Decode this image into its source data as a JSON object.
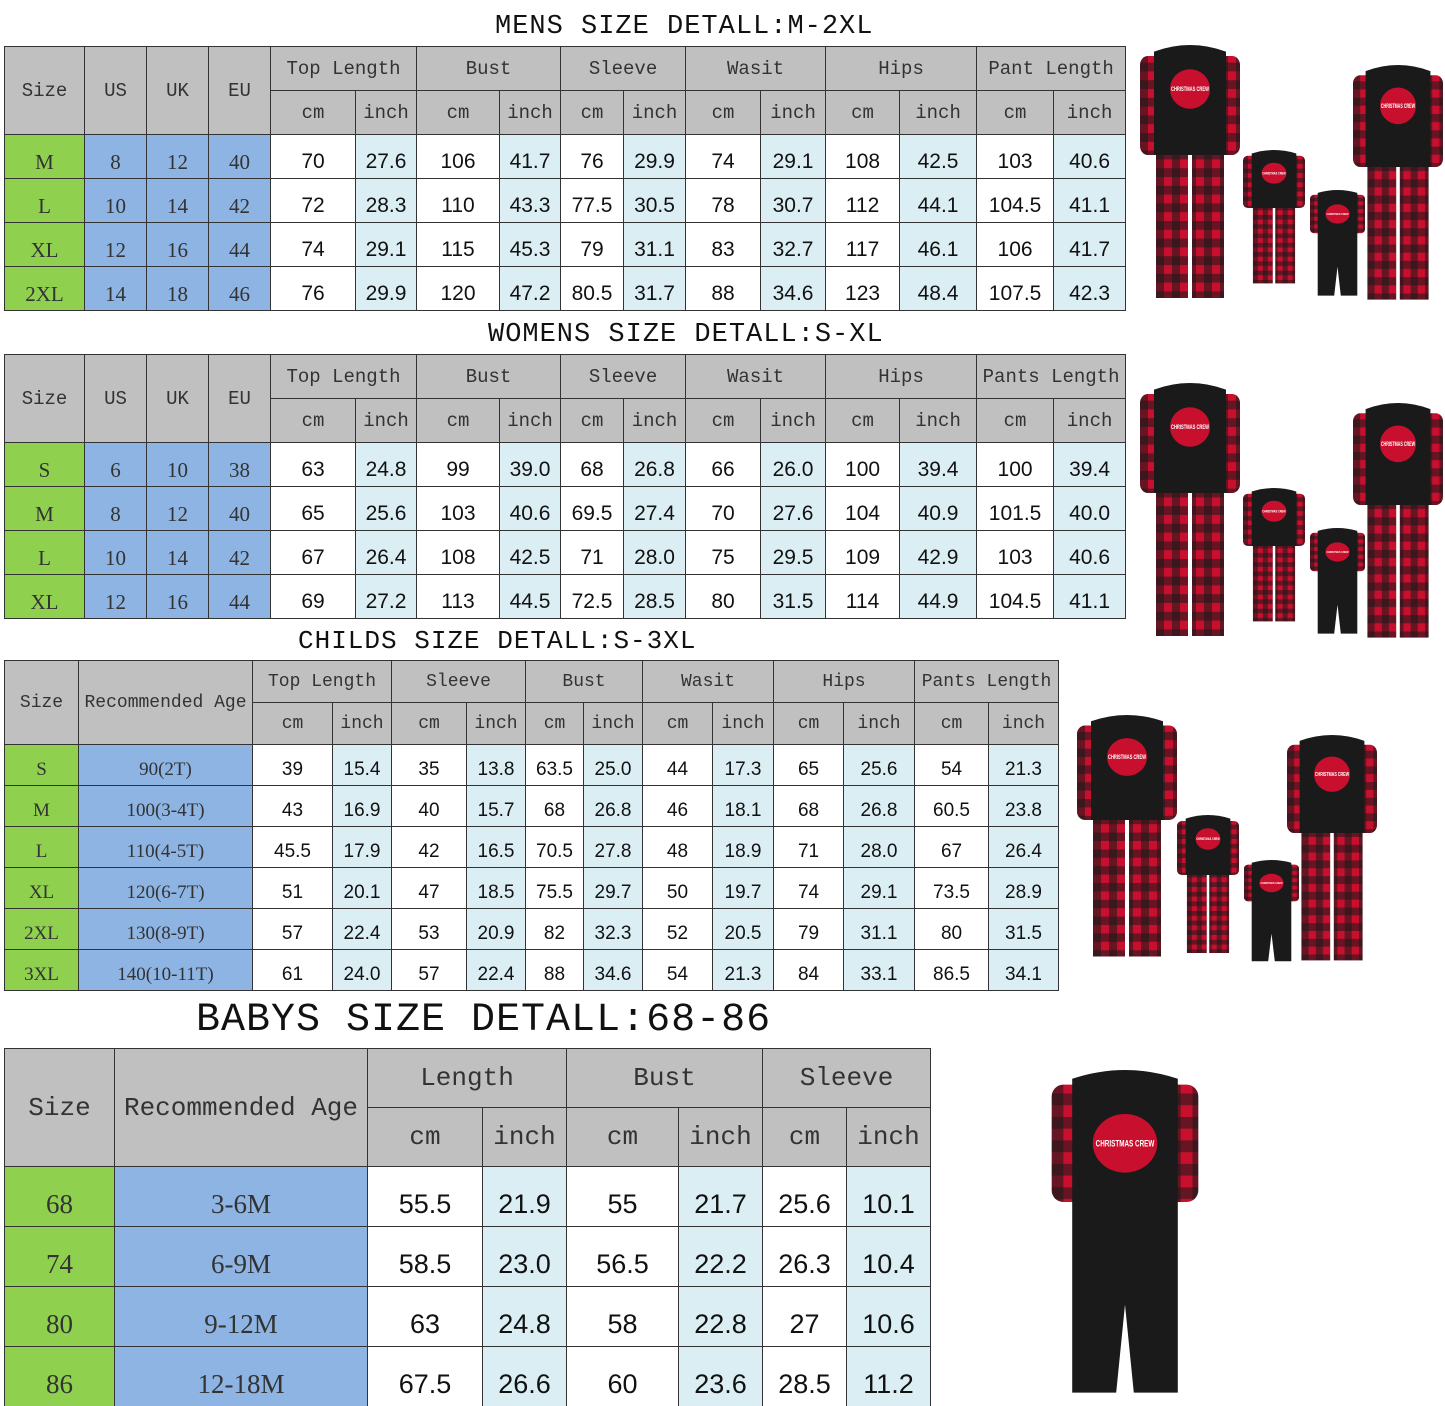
{
  "colors": {
    "header": "#c0c0c0",
    "size": "#8fd14f",
    "fit": "#8db4e2",
    "inch": "#dbeef4",
    "plaid_red": "#c8102e",
    "plaid_black": "#1a1a1a"
  },
  "mens": {
    "title": "MENS SIZE DETALL:M-2XL",
    "fixed_headers": [
      "Size",
      "US",
      "UK",
      "EU"
    ],
    "groups": [
      "Top Length",
      "Bust",
      "Sleeve",
      "Wasit",
      "Hips",
      "Pant Length"
    ],
    "units": [
      "cm",
      "inch"
    ],
    "rows": [
      [
        "M",
        "8",
        "12",
        "40",
        "70",
        "27.6",
        "106",
        "41.7",
        "76",
        "29.9",
        "74",
        "29.1",
        "108",
        "42.5",
        "103",
        "40.6"
      ],
      [
        "L",
        "10",
        "14",
        "42",
        "72",
        "28.3",
        "110",
        "43.3",
        "77.5",
        "30.5",
        "78",
        "30.7",
        "112",
        "44.1",
        "104.5",
        "41.1"
      ],
      [
        "XL",
        "12",
        "16",
        "44",
        "74",
        "29.1",
        "115",
        "45.3",
        "79",
        "31.1",
        "83",
        "32.7",
        "117",
        "46.1",
        "106",
        "41.7"
      ],
      [
        "2XL",
        "14",
        "18",
        "46",
        "76",
        "29.9",
        "120",
        "47.2",
        "80.5",
        "31.7",
        "88",
        "34.6",
        "123",
        "48.4",
        "107.5",
        "42.3"
      ]
    ]
  },
  "womens": {
    "title": "WOMENS SIZE DETALL:S-XL",
    "fixed_headers": [
      "Size",
      "US",
      "UK",
      "EU"
    ],
    "groups": [
      "Top Length",
      "Bust",
      "Sleeve",
      "Wasit",
      "Hips",
      "Pants Length"
    ],
    "units": [
      "cm",
      "inch"
    ],
    "rows": [
      [
        "S",
        "6",
        "10",
        "38",
        "63",
        "24.8",
        "99",
        "39.0",
        "68",
        "26.8",
        "66",
        "26.0",
        "100",
        "39.4",
        "100",
        "39.4"
      ],
      [
        "M",
        "8",
        "12",
        "40",
        "65",
        "25.6",
        "103",
        "40.6",
        "69.5",
        "27.4",
        "70",
        "27.6",
        "104",
        "40.9",
        "101.5",
        "40.0"
      ],
      [
        "L",
        "10",
        "14",
        "42",
        "67",
        "26.4",
        "108",
        "42.5",
        "71",
        "28.0",
        "75",
        "29.5",
        "109",
        "42.9",
        "103",
        "40.6"
      ],
      [
        "XL",
        "12",
        "16",
        "44",
        "69",
        "27.2",
        "113",
        "44.5",
        "72.5",
        "28.5",
        "80",
        "31.5",
        "114",
        "44.9",
        "104.5",
        "41.1"
      ]
    ]
  },
  "childs": {
    "title": "CHILDS SIZE DETALL:S-3XL",
    "fixed_headers": [
      "Size",
      "Recommended Age"
    ],
    "groups": [
      "Top Length",
      "Sleeve",
      "Bust",
      "Wasit",
      "Hips",
      "Pants Length"
    ],
    "units": [
      "cm",
      "inch"
    ],
    "rows": [
      [
        "S",
        "90(2T)",
        "39",
        "15.4",
        "35",
        "13.8",
        "63.5",
        "25.0",
        "44",
        "17.3",
        "65",
        "25.6",
        "54",
        "21.3"
      ],
      [
        "M",
        "100(3-4T)",
        "43",
        "16.9",
        "40",
        "15.7",
        "68",
        "26.8",
        "46",
        "18.1",
        "68",
        "26.8",
        "60.5",
        "23.8"
      ],
      [
        "L",
        "110(4-5T)",
        "45.5",
        "17.9",
        "42",
        "16.5",
        "70.5",
        "27.8",
        "48",
        "18.9",
        "71",
        "28.0",
        "67",
        "26.4"
      ],
      [
        "XL",
        "120(6-7T)",
        "51",
        "20.1",
        "47",
        "18.5",
        "75.5",
        "29.7",
        "50",
        "19.7",
        "74",
        "29.1",
        "73.5",
        "28.9"
      ],
      [
        "2XL",
        "130(8-9T)",
        "57",
        "22.4",
        "53",
        "20.9",
        "82",
        "32.3",
        "52",
        "20.5",
        "79",
        "31.1",
        "80",
        "31.5"
      ],
      [
        "3XL",
        "140(10-11T)",
        "61",
        "24.0",
        "57",
        "22.4",
        "88",
        "34.6",
        "54",
        "21.3",
        "84",
        "33.1",
        "86.5",
        "34.1"
      ]
    ]
  },
  "babys": {
    "title": "BABYS SIZE DETALL:68-86",
    "fixed_headers": [
      "Size",
      "Recommended Age"
    ],
    "groups": [
      "Length",
      "Bust",
      "Sleeve"
    ],
    "units": [
      "cm",
      "inch"
    ],
    "rows": [
      [
        "68",
        "3-6M",
        "55.5",
        "21.9",
        "55",
        "21.7",
        "25.6",
        "10.1"
      ],
      [
        "74",
        "6-9M",
        "58.5",
        "23.0",
        "56.5",
        "22.2",
        "26.3",
        "10.4"
      ],
      [
        "80",
        "9-12M",
        "63",
        "24.8",
        "58",
        "22.8",
        "27",
        "10.6"
      ],
      [
        "86",
        "12-18M",
        "67.5",
        "26.6",
        "60",
        "23.6",
        "28.5",
        "11.2"
      ]
    ]
  },
  "product_images": {
    "shirt_text": "CHRISTMAS CREW"
  }
}
